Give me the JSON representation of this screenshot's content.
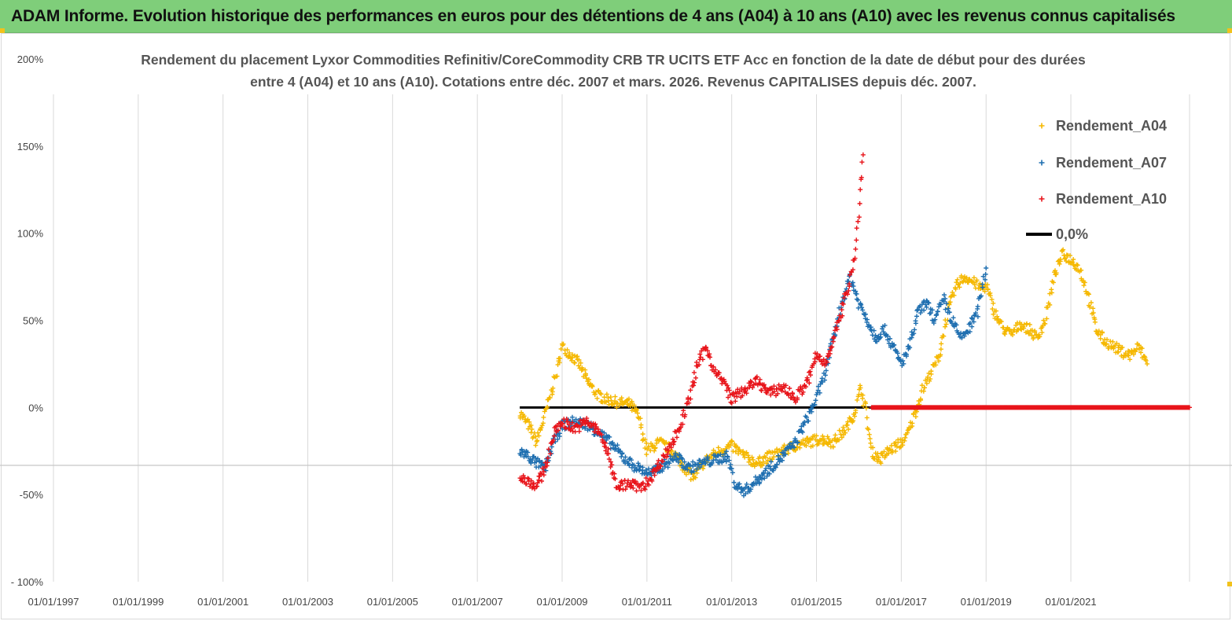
{
  "banner": {
    "title": "ADAM Informe. Evolution historique des performances en euros pour des détentions de 4 ans (A04) à 10 ans (A10) avec les revenus connus capitalisés"
  },
  "chart_data": {
    "type": "scatter",
    "title_line1": "Rendement du placement Lyxor Commodities Refinitiv/CoreCommodity CRB TR UCITS ETF Acc en fonction de la date de début pour des durées",
    "title_line2": "entre 4 (A04) et 10 ans (A10).  Cotations entre déc. 2007 et mars. 2026. Revenus CAPITALISES depuis déc. 2007.",
    "ylim": [
      -100,
      200
    ],
    "y_ticks": [
      200,
      150,
      100,
      50,
      0,
      -50,
      -100
    ],
    "y_tick_labels": [
      "200%",
      "150%",
      "100%",
      "50%",
      "0%",
      "-50%",
      "- 100%"
    ],
    "x_tick_labels": [
      "01/01/1997",
      "01/01/1999",
      "01/01/2001",
      "01/01/2003",
      "01/01/2005",
      "01/01/2007",
      "01/01/2009",
      "01/01/2011",
      "01/01/2013",
      "01/01/2015",
      "01/01/2017",
      "01/01/2019",
      "01/01/2021"
    ],
    "x_range_years": [
      1997,
      2023.8
    ],
    "grid": "vertical",
    "legend_position": "top-right",
    "legend": [
      {
        "label": "Rendement_A04",
        "color": "#f5b800",
        "marker": "+"
      },
      {
        "label": "Rendement_A07",
        "color": "#1f6fb0",
        "marker": "+"
      },
      {
        "label": "Rendement_A10",
        "color": "#e8141a",
        "marker": "+"
      },
      {
        "label": "0,0%",
        "color": "#000000",
        "marker": "line"
      }
    ],
    "series": [
      {
        "name": "Rendement_A04",
        "color": "#f5b800",
        "points": [
          [
            2008.0,
            -3
          ],
          [
            2008.2,
            -10
          ],
          [
            2008.4,
            -20
          ],
          [
            2008.55,
            -8
          ],
          [
            2008.7,
            5
          ],
          [
            2008.85,
            18
          ],
          [
            2009.0,
            35
          ],
          [
            2009.2,
            30
          ],
          [
            2009.4,
            25
          ],
          [
            2009.6,
            15
          ],
          [
            2009.8,
            8
          ],
          [
            2010.0,
            5
          ],
          [
            2010.3,
            3
          ],
          [
            2010.6,
            2
          ],
          [
            2010.8,
            -5
          ],
          [
            2011.0,
            -25
          ],
          [
            2011.3,
            -20
          ],
          [
            2011.6,
            -25
          ],
          [
            2011.9,
            -35
          ],
          [
            2012.1,
            -40
          ],
          [
            2012.4,
            -30
          ],
          [
            2012.7,
            -25
          ],
          [
            2013.0,
            -22
          ],
          [
            2013.3,
            -28
          ],
          [
            2013.6,
            -32
          ],
          [
            2013.9,
            -28
          ],
          [
            2014.2,
            -25
          ],
          [
            2014.5,
            -22
          ],
          [
            2014.8,
            -20
          ],
          [
            2015.1,
            -18
          ],
          [
            2015.4,
            -20
          ],
          [
            2015.7,
            -12
          ],
          [
            2015.9,
            -3
          ],
          [
            2016.05,
            12
          ],
          [
            2016.15,
            0
          ],
          [
            2016.3,
            -25
          ],
          [
            2016.5,
            -30
          ],
          [
            2016.7,
            -25
          ],
          [
            2016.9,
            -22
          ],
          [
            2017.1,
            -18
          ],
          [
            2017.3,
            -5
          ],
          [
            2017.5,
            10
          ],
          [
            2017.7,
            20
          ],
          [
            2017.9,
            30
          ],
          [
            2018.1,
            55
          ],
          [
            2018.3,
            70
          ],
          [
            2018.5,
            75
          ],
          [
            2018.7,
            72
          ],
          [
            2018.9,
            68
          ],
          [
            2019.0,
            70
          ],
          [
            2019.2,
            55
          ],
          [
            2019.4,
            45
          ],
          [
            2019.6,
            42
          ],
          [
            2019.8,
            48
          ],
          [
            2020.0,
            45
          ],
          [
            2020.2,
            40
          ],
          [
            2020.4,
            50
          ],
          [
            2020.6,
            75
          ],
          [
            2020.8,
            88
          ],
          [
            2021.0,
            85
          ],
          [
            2021.2,
            80
          ],
          [
            2021.4,
            65
          ],
          [
            2021.6,
            45
          ],
          [
            2021.8,
            38
          ],
          [
            2022.0,
            35
          ],
          [
            2022.2,
            32
          ],
          [
            2022.4,
            30
          ],
          [
            2022.6,
            35
          ],
          [
            2022.8,
            25
          ]
        ]
      },
      {
        "name": "Rendement_A07",
        "color": "#1f6fb0",
        "points": [
          [
            2008.0,
            -25
          ],
          [
            2008.2,
            -28
          ],
          [
            2008.4,
            -32
          ],
          [
            2008.6,
            -35
          ],
          [
            2008.8,
            -20
          ],
          [
            2009.0,
            -10
          ],
          [
            2009.3,
            -8
          ],
          [
            2009.6,
            -10
          ],
          [
            2009.9,
            -15
          ],
          [
            2010.2,
            -22
          ],
          [
            2010.5,
            -30
          ],
          [
            2010.8,
            -35
          ],
          [
            2011.1,
            -38
          ],
          [
            2011.4,
            -33
          ],
          [
            2011.7,
            -28
          ],
          [
            2012.0,
            -35
          ],
          [
            2012.3,
            -32
          ],
          [
            2012.6,
            -30
          ],
          [
            2012.9,
            -28
          ],
          [
            2013.1,
            -45
          ],
          [
            2013.3,
            -48
          ],
          [
            2013.6,
            -42
          ],
          [
            2013.9,
            -35
          ],
          [
            2014.2,
            -28
          ],
          [
            2014.5,
            -20
          ],
          [
            2014.8,
            -5
          ],
          [
            2015.0,
            5
          ],
          [
            2015.2,
            20
          ],
          [
            2015.4,
            40
          ],
          [
            2015.6,
            60
          ],
          [
            2015.8,
            75
          ],
          [
            2016.0,
            60
          ],
          [
            2016.2,
            50
          ],
          [
            2016.4,
            40
          ],
          [
            2016.6,
            45
          ],
          [
            2016.8,
            35
          ],
          [
            2017.0,
            25
          ],
          [
            2017.2,
            35
          ],
          [
            2017.4,
            55
          ],
          [
            2017.6,
            60
          ],
          [
            2017.8,
            50
          ],
          [
            2018.0,
            62
          ],
          [
            2018.2,
            50
          ],
          [
            2018.4,
            40
          ],
          [
            2018.6,
            45
          ],
          [
            2018.8,
            55
          ],
          [
            2019.0,
            80
          ]
        ]
      },
      {
        "name": "Rendement_A10",
        "color": "#e8141a",
        "points": [
          [
            2008.0,
            -40
          ],
          [
            2008.2,
            -42
          ],
          [
            2008.4,
            -45
          ],
          [
            2008.6,
            -35
          ],
          [
            2008.8,
            -15
          ],
          [
            2009.0,
            -8
          ],
          [
            2009.3,
            -12
          ],
          [
            2009.6,
            -8
          ],
          [
            2009.9,
            -15
          ],
          [
            2010.1,
            -28
          ],
          [
            2010.3,
            -45
          ],
          [
            2010.6,
            -44
          ],
          [
            2010.9,
            -46
          ],
          [
            2011.1,
            -40
          ],
          [
            2011.4,
            -28
          ],
          [
            2011.6,
            -20
          ],
          [
            2011.8,
            -10
          ],
          [
            2012.0,
            5
          ],
          [
            2012.2,
            25
          ],
          [
            2012.4,
            35
          ],
          [
            2012.6,
            20
          ],
          [
            2012.8,
            15
          ],
          [
            2013.0,
            5
          ],
          [
            2013.3,
            10
          ],
          [
            2013.6,
            15
          ],
          [
            2013.9,
            8
          ],
          [
            2014.2,
            12
          ],
          [
            2014.5,
            5
          ],
          [
            2014.8,
            15
          ],
          [
            2015.0,
            30
          ],
          [
            2015.2,
            25
          ],
          [
            2015.4,
            40
          ],
          [
            2015.6,
            55
          ],
          [
            2015.8,
            75
          ],
          [
            2015.9,
            88
          ],
          [
            2016.0,
            110
          ],
          [
            2016.05,
            130
          ],
          [
            2016.1,
            145
          ]
        ]
      }
    ],
    "zero_line": {
      "label": "0,0%",
      "y": 0,
      "x_start": 2008.0,
      "x_end": 2023.8
    },
    "a10_zero_segment": {
      "x_start": 2016.3,
      "x_end": 2023.8,
      "y": 0
    }
  }
}
